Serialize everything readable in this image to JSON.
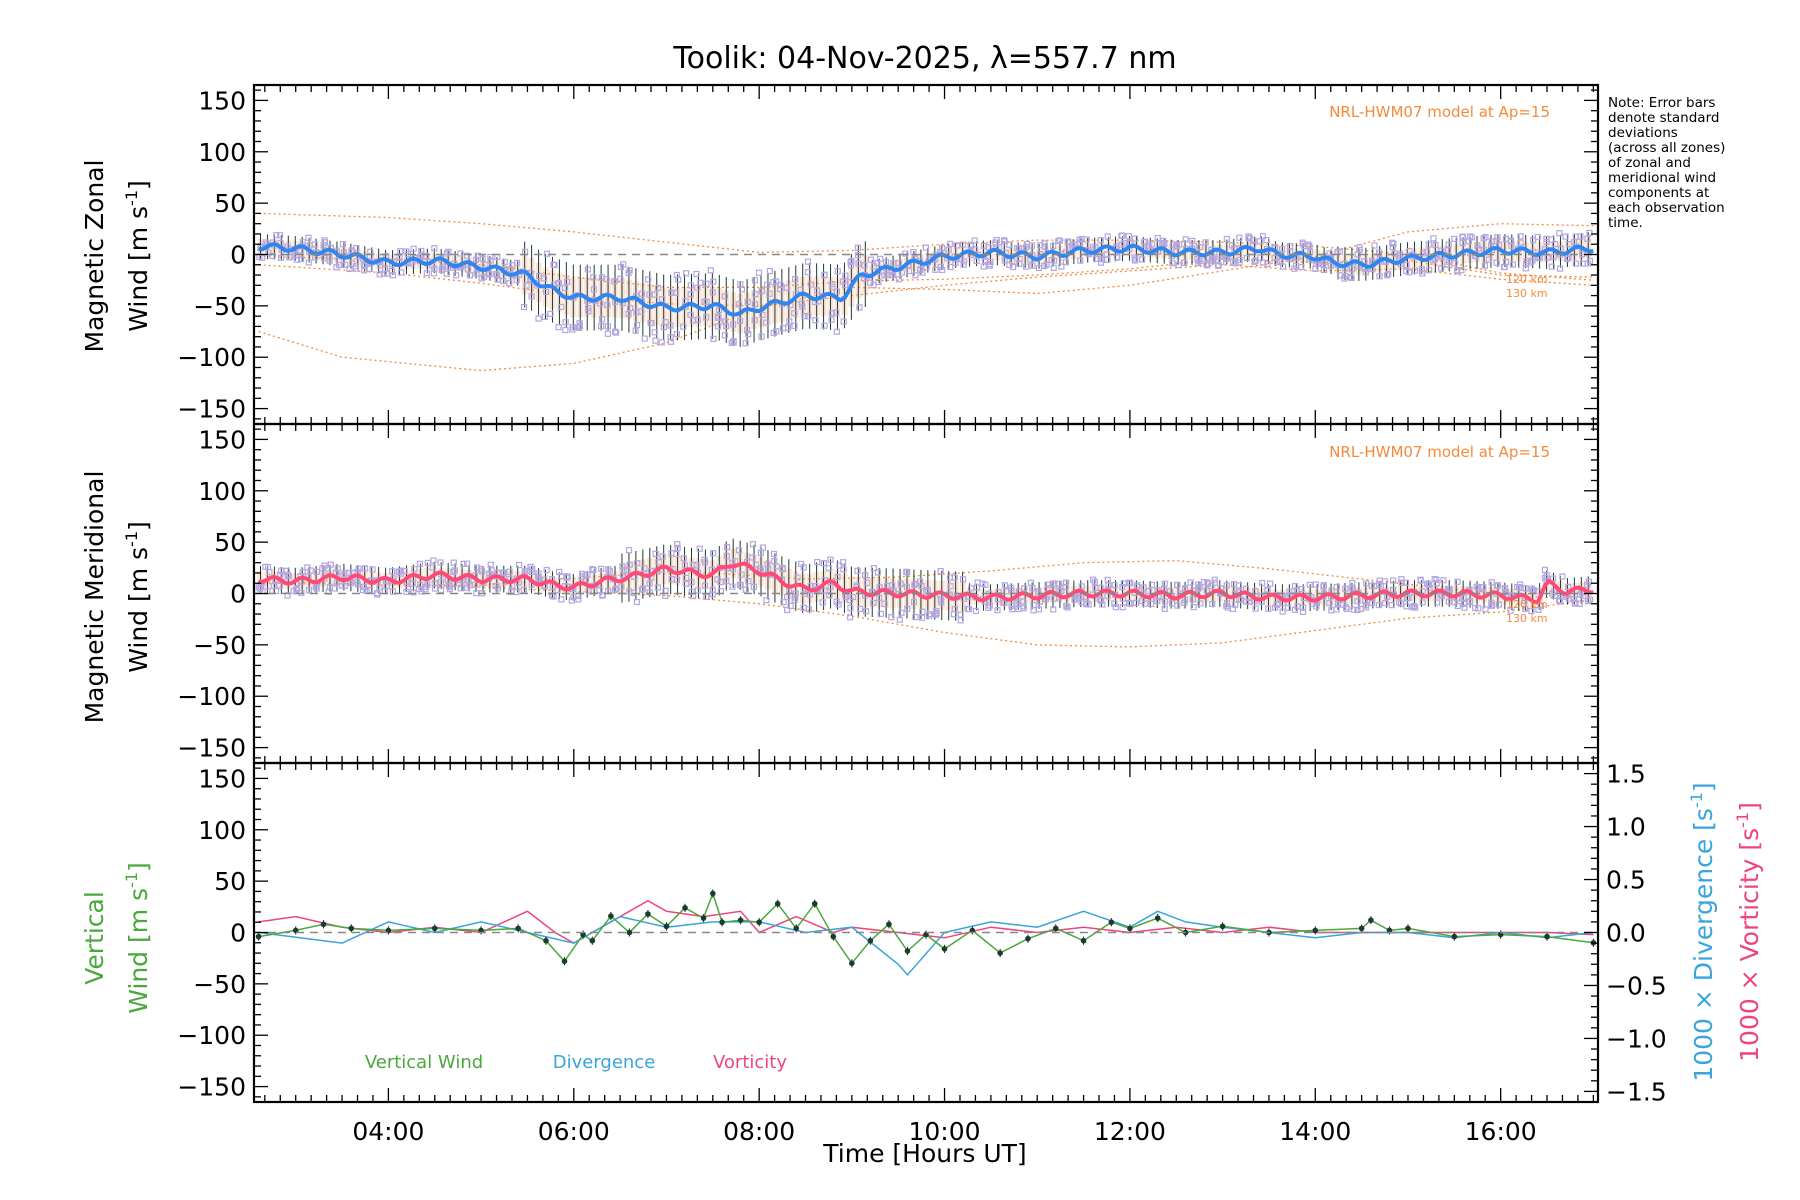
{
  "chart_data": {
    "type": "line",
    "title": "Toolik: 04-Nov-2025, λ=557.7 nm",
    "note_lines": [
      "Note: Error bars",
      "denote standard",
      "deviations",
      "(across all zones)",
      "of zonal and",
      "meridional wind",
      "components at",
      "each observation",
      "time."
    ],
    "model_label": "NRL-HWM07 model at Ap=15",
    "model_alt_labels": [
      "120 km",
      "130 km"
    ],
    "xlabel": "Time [Hours UT]",
    "xlim": [
      2.55,
      17.05
    ],
    "x_tick_labels": [
      "04:00",
      "06:00",
      "08:00",
      "10:00",
      "12:00",
      "14:00",
      "16:00"
    ],
    "x_tick_values": [
      4,
      6,
      8,
      10,
      12,
      14,
      16
    ],
    "y_tick_labels": [
      "150",
      "100",
      "50",
      "0",
      "−50",
      "−100",
      "−150"
    ],
    "y_tick_values": [
      150,
      100,
      50,
      0,
      -50,
      -100,
      -150
    ],
    "right_tick_labels": [
      "1.5",
      "1.0",
      "0.5",
      "0.0",
      "−0.5",
      "−1.0",
      "−1.5"
    ],
    "right_tick_values": [
      1.5,
      1.0,
      0.5,
      0.0,
      -0.5,
      -1.0,
      -1.5
    ],
    "right_ylim": [
      -1.6,
      1.6
    ],
    "ylim": [
      -165,
      165
    ],
    "colors": {
      "zonal": "#2f86f0",
      "meridional": "#ff4a78",
      "model": "#f58a3a",
      "zone_points": "#b4a6e0",
      "vertical": "#4aa83c",
      "divergence": "#3aa4dc",
      "vorticity": "#f0447c",
      "error_bars": "#1a3c30",
      "zero_line": "#888888"
    },
    "panels": [
      {
        "ylabel_line1": "Magnetic Zonal",
        "ylabel_line2": "Wind [m s",
        "ylabel_sup": "-1",
        "ylabel_end": "]",
        "series": [
          {
            "name": "Zonal wind",
            "x": [
              2.6,
              3.0,
              3.5,
              4.0,
              4.5,
              5.0,
              5.5,
              5.7,
              6.0,
              6.5,
              7.0,
              7.5,
              7.8,
              8.0,
              8.5,
              8.9,
              9.1,
              9.5,
              10.0,
              10.5,
              11.0,
              11.5,
              12.0,
              12.5,
              13.0,
              13.4,
              13.6,
              14.0,
              14.2,
              14.5,
              15.0,
              15.5,
              16.0,
              16.5,
              17.0
            ],
            "y": [
              8,
              6,
              0,
              -8,
              -6,
              -12,
              -20,
              -32,
              -42,
              -42,
              -52,
              -50,
              -58,
              -52,
              -40,
              -42,
              -20,
              -12,
              -2,
              2,
              -2,
              4,
              6,
              2,
              2,
              6,
              0,
              -2,
              -8,
              -10,
              -4,
              0,
              4,
              2,
              6
            ]
          },
          {
            "name": "NRL-HWM07 120 km",
            "x": [
              2.6,
              4.0,
              5.0,
              6.0,
              7.0,
              8.0,
              9.0,
              10.0,
              11.0,
              12.0,
              13.0,
              14.0,
              15.0,
              16.0,
              17.0
            ],
            "y": [
              40,
              36,
              30,
              22,
              12,
              2,
              4,
              10,
              14,
              14,
              12,
              8,
              0,
              -18,
              -25
            ]
          },
          {
            "name": "NRL-HWM07 130 km",
            "x": [
              2.6,
              3.5,
              5.0,
              6.0,
              7.0,
              8.0,
              9.0,
              10.0,
              11.0,
              12.0,
              13.0,
              14.0,
              14.5,
              15.0,
              16.0,
              17.0
            ],
            "y": [
              -75,
              -100,
              -113,
              -106,
              -86,
              -52,
              -32,
              -34,
              -38,
              -30,
              -16,
              -2,
              10,
              22,
              30,
              28
            ]
          },
          {
            "name": "Model upper",
            "x": [
              2.6,
              4.0,
              5.0,
              6.0,
              7.0,
              8.0,
              9.0,
              10.0,
              11.0,
              12.0,
              13.0,
              14.0,
              15.0,
              16.0,
              17.0
            ],
            "y": [
              -2,
              -5,
              -10,
              -22,
              -32,
              -32,
              -26,
              -24,
              -20,
              -14,
              -4,
              -8,
              -6,
              -20,
              -22
            ]
          },
          {
            "name": "Model lower",
            "x": [
              2.6,
              4.0,
              5.0,
              6.0,
              7.0,
              8.0,
              9.0,
              10.0,
              11.0,
              12.0,
              13.0,
              14.0,
              15.0,
              16.0,
              17.0
            ],
            "y": [
              -10,
              -18,
              -28,
              -40,
              -48,
              -50,
              -40,
              -30,
              -22,
              -16,
              -10,
              -16,
              -14,
              -24,
              -30
            ]
          }
        ]
      },
      {
        "ylabel_line1": "Magnetic Meridional",
        "ylabel_line2": "Wind [m s",
        "ylabel_sup": "-1",
        "ylabel_end": "]",
        "series": [
          {
            "name": "Meridional wind",
            "x": [
              2.6,
              3.0,
              3.5,
              4.0,
              4.5,
              5.0,
              5.5,
              5.8,
              6.0,
              6.3,
              6.6,
              7.0,
              7.3,
              7.5,
              7.7,
              8.0,
              8.3,
              8.5,
              8.8,
              9.0,
              9.5,
              10.0,
              10.5,
              11.0,
              11.5,
              12.0,
              12.5,
              13.0,
              13.5,
              14.0,
              14.5,
              15.0,
              15.5,
              16.0,
              16.4,
              16.5,
              16.7,
              17.0
            ],
            "y": [
              14,
              12,
              16,
              12,
              18,
              14,
              14,
              8,
              6,
              12,
              16,
              24,
              20,
              18,
              30,
              22,
              10,
              4,
              10,
              2,
              0,
              -2,
              -4,
              -2,
              0,
              0,
              -2,
              0,
              -4,
              -4,
              -2,
              0,
              0,
              -2,
              -6,
              10,
              2,
              4
            ]
          },
          {
            "name": "NRL-HWM07 120 km",
            "x": [
              2.6,
              5.0,
              6.5,
              7.5,
              8.5,
              9.5,
              10.5,
              11.5,
              12.5,
              13.5,
              14.5,
              15.5,
              16.5,
              17.0
            ],
            "y": [
              10,
              8,
              18,
              20,
              14,
              16,
              22,
              30,
              32,
              24,
              14,
              4,
              -4,
              -8
            ]
          },
          {
            "name": "NRL-HWM07 130 km",
            "x": [
              2.6,
              5.0,
              7.0,
              8.0,
              9.0,
              10.0,
              11.0,
              12.0,
              13.0,
              14.0,
              15.0,
              16.0,
              17.0
            ],
            "y": [
              12,
              6,
              -2,
              -10,
              -22,
              -38,
              -50,
              -52,
              -48,
              -36,
              -24,
              -18,
              -6
            ]
          }
        ]
      },
      {
        "ylabel_line1": "Vertical",
        "ylabel_line2": "Wind [m s",
        "ylabel_sup": "-1",
        "ylabel_end": "]",
        "right_label_divergence": "1000 × Divergence [s",
        "right_label_vorticity": "1000 × Vorticity [s",
        "right_label_sup": "-1",
        "right_label_end": "]",
        "legend": [
          "Vertical Wind",
          "Divergence",
          "Vorticity"
        ],
        "series": [
          {
            "name": "Vertical Wind",
            "x": [
              2.6,
              3.0,
              3.3,
              3.6,
              4.0,
              4.5,
              5.0,
              5.4,
              5.7,
              5.9,
              6.1,
              6.2,
              6.4,
              6.6,
              6.8,
              7.0,
              7.2,
              7.4,
              7.5,
              7.6,
              7.8,
              8.0,
              8.2,
              8.4,
              8.6,
              8.8,
              9.0,
              9.2,
              9.4,
              9.6,
              9.8,
              10.0,
              10.3,
              10.6,
              10.9,
              11.2,
              11.5,
              11.8,
              12.0,
              12.3,
              12.6,
              13.0,
              13.5,
              14.0,
              14.5,
              14.6,
              14.8,
              15.0,
              15.5,
              16.0,
              16.5,
              17.0
            ],
            "y": [
              -4,
              2,
              8,
              4,
              2,
              4,
              2,
              4,
              -8,
              -28,
              -2,
              -8,
              16,
              0,
              18,
              6,
              24,
              14,
              38,
              10,
              12,
              10,
              28,
              4,
              28,
              -4,
              -30,
              -8,
              8,
              -18,
              -2,
              -16,
              2,
              -20,
              -6,
              4,
              -8,
              10,
              4,
              14,
              0,
              6,
              0,
              2,
              4,
              12,
              2,
              4,
              -4,
              -2,
              -4,
              -10
            ]
          },
          {
            "name": "Divergence",
            "x": [
              2.6,
              3.5,
              4.0,
              4.5,
              5.0,
              5.5,
              6.0,
              6.5,
              7.0,
              7.5,
              8.0,
              8.5,
              9.0,
              9.5,
              9.6,
              10.0,
              10.5,
              11.0,
              11.5,
              12.0,
              12.3,
              12.6,
              13.0,
              13.5,
              14.0,
              14.5,
              15.0,
              15.5,
              16.0,
              16.5,
              17.0
            ],
            "y": [
              0.0,
              -0.1,
              0.1,
              0.0,
              0.1,
              0.0,
              -0.1,
              0.15,
              0.05,
              0.1,
              0.1,
              0.0,
              0.05,
              -0.3,
              -0.4,
              0.0,
              0.1,
              0.05,
              0.2,
              0.05,
              0.2,
              0.1,
              0.05,
              0.0,
              -0.05,
              0.0,
              0.0,
              -0.05,
              0.0,
              -0.05,
              0.0
            ]
          },
          {
            "name": "Vorticity",
            "x": [
              2.6,
              3.0,
              3.5,
              4.0,
              4.5,
              5.0,
              5.5,
              5.8,
              6.0,
              6.4,
              6.8,
              7.0,
              7.4,
              7.8,
              8.0,
              8.4,
              8.8,
              9.0,
              9.5,
              10.0,
              10.5,
              11.0,
              11.5,
              12.0,
              12.5,
              13.0,
              13.5,
              14.0,
              14.5,
              15.0,
              15.5,
              16.0,
              16.5,
              17.0
            ],
            "y": [
              0.1,
              0.15,
              0.05,
              0.0,
              0.05,
              0.0,
              0.2,
              0.0,
              -0.1,
              0.1,
              0.3,
              0.2,
              0.15,
              0.2,
              0.0,
              0.15,
              0.0,
              0.05,
              0.0,
              -0.05,
              0.05,
              0.0,
              0.05,
              0.0,
              0.05,
              0.0,
              0.05,
              0.0,
              0.0,
              0.0,
              0.0,
              0.0,
              0.0,
              -0.02
            ]
          }
        ]
      }
    ]
  }
}
